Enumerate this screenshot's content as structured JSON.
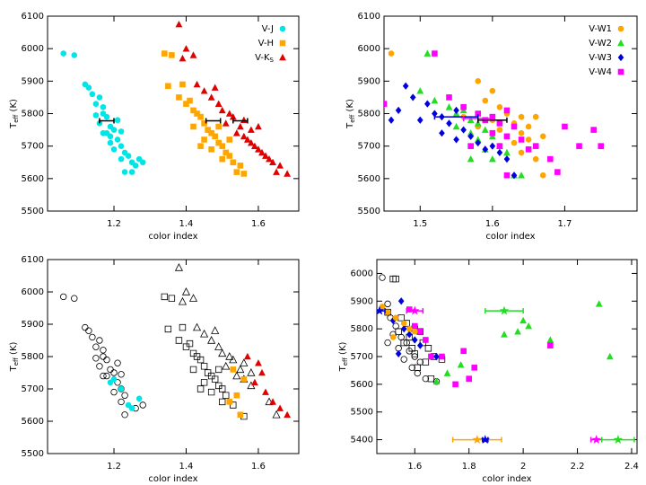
{
  "chart_data": [
    {
      "type": "scatter",
      "xlabel": "color index",
      "ylabel": [
        {
          "text": "T"
        },
        {
          "text": "eff",
          "sub": true
        },
        {
          "text": " (K)"
        }
      ],
      "xlim": [
        1.016,
        1.712
      ],
      "ylim": [
        5500,
        6100
      ],
      "xticks": [
        1.2,
        1.4,
        1.6
      ],
      "yticks": [
        5500,
        5600,
        5700,
        5800,
        5900,
        6000,
        6100
      ],
      "legend": "upper right",
      "series": [
        {
          "name": "V-J",
          "color": "#00e5e5",
          "marker": "circle",
          "filled": true,
          "x": [
            1.06,
            1.09,
            1.12,
            1.13,
            1.14,
            1.15,
            1.16,
            1.17,
            1.17,
            1.18,
            1.15,
            1.16,
            1.19,
            1.18,
            1.2,
            1.21,
            1.19,
            1.22,
            1.2,
            1.23,
            1.22,
            1.24,
            1.25,
            1.26,
            1.27,
            1.23,
            1.25,
            1.28,
            1.17,
            1.21,
            1.19,
            1.22
          ],
          "y": [
            5985,
            5980,
            5890,
            5880,
            5860,
            5830,
            5850,
            5820,
            5800,
            5790,
            5795,
            5770,
            5760,
            5740,
            5750,
            5720,
            5710,
            5700,
            5690,
            5680,
            5660,
            5670,
            5650,
            5640,
            5660,
            5620,
            5620,
            5650,
            5740,
            5780,
            5730,
            5745
          ]
        },
        {
          "name": "V-H",
          "color": "#ffa500",
          "marker": "square",
          "filled": true,
          "x": [
            1.34,
            1.36,
            1.35,
            1.39,
            1.38,
            1.4,
            1.41,
            1.42,
            1.43,
            1.44,
            1.45,
            1.42,
            1.46,
            1.47,
            1.48,
            1.45,
            1.49,
            1.5,
            1.47,
            1.51,
            1.52,
            1.5,
            1.53,
            1.55,
            1.54,
            1.56,
            1.52,
            1.44,
            1.49
          ],
          "y": [
            5985,
            5980,
            5885,
            5890,
            5850,
            5830,
            5840,
            5810,
            5800,
            5790,
            5770,
            5760,
            5750,
            5740,
            5730,
            5720,
            5710,
            5700,
            5690,
            5680,
            5670,
            5660,
            5650,
            5640,
            5620,
            5615,
            5720,
            5700,
            5760
          ]
        },
        {
          "name": "V-K",
          "name_sub": "S",
          "color": "#e00000",
          "marker": "triangle",
          "filled": true,
          "x": [
            1.38,
            1.4,
            1.39,
            1.42,
            1.43,
            1.45,
            1.47,
            1.48,
            1.49,
            1.5,
            1.52,
            1.53,
            1.51,
            1.55,
            1.54,
            1.56,
            1.57,
            1.58,
            1.59,
            1.6,
            1.61,
            1.62,
            1.63,
            1.64,
            1.66,
            1.65,
            1.68,
            1.58,
            1.6,
            1.56
          ],
          "y": [
            6075,
            6000,
            5970,
            5980,
            5890,
            5870,
            5850,
            5880,
            5830,
            5810,
            5800,
            5790,
            5770,
            5760,
            5740,
            5730,
            5720,
            5710,
            5700,
            5690,
            5680,
            5670,
            5660,
            5650,
            5640,
            5620,
            5615,
            5750,
            5760,
            5780
          ]
        }
      ],
      "errorbars": [
        {
          "x": 1.18,
          "y": 5778,
          "xerr": 0.02,
          "color": "#000"
        },
        {
          "x": 1.475,
          "y": 5778,
          "xerr": 0.02,
          "color": "#000"
        },
        {
          "x": 1.55,
          "y": 5778,
          "xerr": 0.02,
          "color": "#000"
        }
      ]
    },
    {
      "type": "scatter",
      "xlabel": "color index",
      "ylabel": [
        {
          "text": "T"
        },
        {
          "text": "eff",
          "sub": true
        },
        {
          "text": " (K)"
        }
      ],
      "xlim": [
        1.45,
        1.8
      ],
      "ylim": [
        5500,
        6100
      ],
      "xticks": [
        1.5,
        1.6,
        1.7
      ],
      "yticks": [
        5500,
        5600,
        5700,
        5800,
        5900,
        6000,
        6100
      ],
      "legend": "upper right",
      "series": [
        {
          "name": "V-W1",
          "color": "#ffa500",
          "marker": "circle",
          "filled": true,
          "x": [
            1.46,
            1.58,
            1.6,
            1.59,
            1.61,
            1.62,
            1.64,
            1.6,
            1.63,
            1.65,
            1.61,
            1.66,
            1.64,
            1.62,
            1.65,
            1.63,
            1.66,
            1.64,
            1.66,
            1.67,
            1.58,
            1.56,
            1.67
          ],
          "y": [
            5985,
            5900,
            5870,
            5840,
            5820,
            5800,
            5790,
            5780,
            5770,
            5760,
            5750,
            5790,
            5740,
            5730,
            5720,
            5710,
            5700,
            5680,
            5660,
            5610,
            5760,
            5790,
            5730
          ]
        },
        {
          "name": "V-W2",
          "color": "#22dd22",
          "marker": "triangle",
          "filled": true,
          "x": [
            1.51,
            1.5,
            1.52,
            1.54,
            1.55,
            1.56,
            1.57,
            1.58,
            1.55,
            1.59,
            1.57,
            1.6,
            1.58,
            1.61,
            1.59,
            1.62,
            1.6,
            1.57,
            1.63,
            1.64
          ],
          "y": [
            5985,
            5870,
            5840,
            5820,
            5800,
            5810,
            5780,
            5770,
            5760,
            5750,
            5740,
            5730,
            5720,
            5700,
            5690,
            5680,
            5660,
            5660,
            5610,
            5610
          ]
        },
        {
          "name": "V-W3",
          "color": "#0000dd",
          "marker": "diamond",
          "filled": true,
          "x": [
            1.48,
            1.49,
            1.47,
            1.51,
            1.52,
            1.53,
            1.5,
            1.54,
            1.55,
            1.56,
            1.53,
            1.57,
            1.55,
            1.58,
            1.6,
            1.59,
            1.61,
            1.62,
            1.63,
            1.46
          ],
          "y": [
            5885,
            5850,
            5810,
            5830,
            5800,
            5790,
            5780,
            5770,
            5810,
            5750,
            5740,
            5730,
            5720,
            5710,
            5700,
            5690,
            5680,
            5660,
            5610,
            5780
          ]
        },
        {
          "name": "V-W4",
          "color": "#ff00ff",
          "marker": "square",
          "filled": true,
          "x": [
            1.45,
            1.52,
            1.54,
            1.56,
            1.58,
            1.6,
            1.62,
            1.59,
            1.61,
            1.63,
            1.6,
            1.62,
            1.64,
            1.61,
            1.65,
            1.7,
            1.72,
            1.74,
            1.75,
            1.68,
            1.69,
            1.66,
            1.62,
            1.57
          ],
          "y": [
            5830,
            5985,
            5850,
            5820,
            5800,
            5790,
            5810,
            5780,
            5770,
            5760,
            5740,
            5730,
            5720,
            5700,
            5690,
            5760,
            5700,
            5750,
            5700,
            5660,
            5620,
            5700,
            5610,
            5700
          ]
        }
      ],
      "errorbars": [
        {
          "x": 1.55,
          "y": 5790,
          "xerr": 0.03,
          "color": "#0000dd"
        },
        {
          "x": 1.58,
          "y": 5785,
          "xerr": 0.02,
          "color": "#ff00ff"
        },
        {
          "x": 1.6,
          "y": 5780,
          "xerr": 0.02,
          "color": "#000"
        }
      ]
    },
    {
      "type": "scatter",
      "xlabel": "color index",
      "ylabel": [
        {
          "text": "T"
        },
        {
          "text": "eff",
          "sub": true
        },
        {
          "text": " (K)"
        }
      ],
      "xlim": [
        1.016,
        1.712
      ],
      "ylim": [
        5500,
        6100
      ],
      "xticks": [
        1.2,
        1.4,
        1.6
      ],
      "yticks": [
        5500,
        5600,
        5700,
        5800,
        5900,
        6000,
        6100
      ],
      "series": [
        {
          "color": "#000",
          "marker": "circle",
          "filled": false,
          "x": [
            1.06,
            1.09,
            1.12,
            1.13,
            1.14,
            1.15,
            1.16,
            1.17,
            1.17,
            1.18,
            1.15,
            1.16,
            1.19,
            1.18,
            1.2,
            1.21,
            1.22,
            1.2,
            1.23,
            1.22,
            1.26,
            1.23,
            1.28,
            1.17,
            1.21,
            1.22
          ],
          "y": [
            5985,
            5980,
            5890,
            5880,
            5860,
            5830,
            5850,
            5820,
            5800,
            5790,
            5795,
            5770,
            5760,
            5740,
            5750,
            5720,
            5700,
            5690,
            5680,
            5660,
            5640,
            5620,
            5650,
            5740,
            5780,
            5745
          ]
        },
        {
          "color": "#000",
          "marker": "square",
          "filled": false,
          "x": [
            1.34,
            1.36,
            1.35,
            1.39,
            1.38,
            1.4,
            1.41,
            1.42,
            1.43,
            1.44,
            1.45,
            1.42,
            1.46,
            1.47,
            1.48,
            1.45,
            1.49,
            1.5,
            1.47,
            1.51,
            1.5,
            1.53,
            1.56,
            1.44,
            1.49
          ],
          "y": [
            5985,
            5980,
            5885,
            5890,
            5850,
            5830,
            5840,
            5810,
            5800,
            5790,
            5770,
            5760,
            5750,
            5740,
            5730,
            5720,
            5710,
            5700,
            5690,
            5680,
            5660,
            5650,
            5615,
            5700,
            5760
          ]
        },
        {
          "color": "#000",
          "marker": "triangle",
          "filled": false,
          "x": [
            1.38,
            1.4,
            1.39,
            1.42,
            1.43,
            1.45,
            1.47,
            1.48,
            1.49,
            1.5,
            1.52,
            1.53,
            1.51,
            1.55,
            1.54,
            1.56,
            1.58,
            1.63,
            1.65,
            1.58,
            1.56
          ],
          "y": [
            6075,
            6000,
            5970,
            5980,
            5890,
            5870,
            5850,
            5880,
            5830,
            5810,
            5800,
            5790,
            5770,
            5760,
            5740,
            5730,
            5710,
            5660,
            5620,
            5750,
            5780
          ]
        },
        {
          "color": "#00e5e5",
          "marker": "circle",
          "filled": true,
          "x": [
            1.19,
            1.22,
            1.24,
            1.25,
            1.27,
            1.2
          ],
          "y": [
            5720,
            5700,
            5650,
            5640,
            5670,
            5730
          ]
        },
        {
          "color": "#ffa500",
          "marker": "square",
          "filled": true,
          "x": [
            1.53,
            1.54,
            1.55,
            1.56,
            1.52
          ],
          "y": [
            5760,
            5680,
            5620,
            5730,
            5660
          ]
        },
        {
          "color": "#e00000",
          "marker": "triangle",
          "filled": true,
          "x": [
            1.57,
            1.6,
            1.62,
            1.64,
            1.66,
            1.68,
            1.59,
            1.61
          ],
          "y": [
            5800,
            5780,
            5690,
            5660,
            5640,
            5620,
            5720,
            5750
          ]
        }
      ]
    },
    {
      "type": "scatter",
      "xlabel": "color index",
      "ylabel": [
        {
          "text": "T"
        },
        {
          "text": "eff",
          "sub": true
        },
        {
          "text": " (K)"
        }
      ],
      "xlim": [
        1.46,
        2.42
      ],
      "ylim": [
        5350,
        6050
      ],
      "xticks": [
        1.6,
        1.8,
        2.0,
        2.2,
        2.4
      ],
      "yticks": [
        5400,
        5500,
        5600,
        5700,
        5800,
        5900,
        6000
      ],
      "series": [
        {
          "color": "#000",
          "marker": "square",
          "filled": false,
          "x": [
            1.52,
            1.53,
            1.5,
            1.55,
            1.57,
            1.6,
            1.62,
            1.58,
            1.63,
            1.65,
            1.6,
            1.67,
            1.64,
            1.7,
            1.56,
            1.61,
            1.66,
            1.54,
            1.59
          ],
          "y": [
            5980,
            5980,
            5860,
            5840,
            5820,
            5800,
            5790,
            5770,
            5750,
            5730,
            5710,
            5700,
            5680,
            5690,
            5750,
            5660,
            5620,
            5790,
            5730
          ]
        },
        {
          "color": "#000",
          "marker": "circle",
          "filled": false,
          "x": [
            1.48,
            1.5,
            1.51,
            1.53,
            1.52,
            1.55,
            1.57,
            1.54,
            1.58,
            1.6,
            1.56,
            1.62,
            1.59,
            1.61,
            1.64,
            1.68,
            1.5
          ],
          "y": [
            5985,
            5890,
            5840,
            5810,
            5780,
            5770,
            5750,
            5730,
            5720,
            5700,
            5690,
            5680,
            5660,
            5640,
            5620,
            5610,
            5750
          ]
        },
        {
          "color": "#22dd22",
          "marker": "triangle",
          "filled": true,
          "x": [
            1.93,
            2.0,
            2.02,
            1.98,
            2.1,
            2.28,
            2.32,
            1.72,
            1.77,
            1.68
          ],
          "y": [
            5780,
            5830,
            5810,
            5790,
            5760,
            5890,
            5700,
            5640,
            5670,
            5610
          ]
        },
        {
          "color": "#ff00ff",
          "marker": "square",
          "filled": true,
          "x": [
            1.62,
            1.64,
            1.7,
            1.78,
            1.82,
            1.8,
            1.75,
            1.66,
            1.6,
            2.1,
            1.58
          ],
          "y": [
            5790,
            5760,
            5700,
            5720,
            5660,
            5620,
            5600,
            5700,
            5810,
            5740,
            5870
          ]
        },
        {
          "color": "#0000dd",
          "marker": "diamond",
          "filled": true,
          "x": [
            1.55,
            1.52,
            1.56,
            1.58,
            1.6,
            1.62,
            1.68,
            1.54
          ],
          "y": [
            5900,
            5830,
            5800,
            5780,
            5760,
            5740,
            5700,
            5710
          ]
        },
        {
          "color": "#ffa500",
          "marker": "circle",
          "filled": true,
          "x": [
            1.48,
            1.5,
            1.53,
            1.56,
            1.58,
            1.6,
            1.52
          ],
          "y": [
            5880,
            5860,
            5840,
            5820,
            5800,
            5790,
            5770
          ]
        }
      ],
      "stars": [
        {
          "x": 1.47,
          "y": 5865,
          "xerr": 0.02,
          "color": "#0000dd"
        },
        {
          "x": 1.6,
          "y": 5865,
          "xerr": 0.03,
          "color": "#ff00ff"
        },
        {
          "x": 1.93,
          "y": 5865,
          "xerr": 0.07,
          "color": "#22dd22"
        },
        {
          "x": 1.83,
          "y": 5400,
          "xerr": 0.09,
          "color": "#ffa500"
        },
        {
          "x": 1.86,
          "y": 5400,
          "xerr": 0.01,
          "color": "#0000dd"
        },
        {
          "x": 2.27,
          "y": 5400,
          "xerr": 0.02,
          "color": "#ff00ff"
        },
        {
          "x": 2.35,
          "y": 5400,
          "xerr": 0.06,
          "color": "#22dd22"
        }
      ]
    }
  ]
}
